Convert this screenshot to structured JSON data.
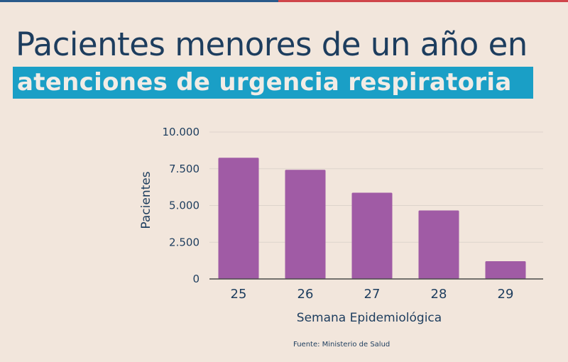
{
  "header": {
    "title_line1": "Pacientes menores de un año en",
    "title_line2": "atenciones de urgencia respiratoria"
  },
  "colors": {
    "background": "#f2e6dc",
    "title": "#1d3d5e",
    "highlight": "#1a9fc6",
    "bar": "#a05ba5",
    "gridline": "#ddd3cb",
    "axis": "#4a4a4a",
    "topbar_left": "#2a5a8a",
    "topbar_right": "#d0464a"
  },
  "chart_data": {
    "type": "bar",
    "title": "Pacientes menores de un año en atenciones de urgencia respiratoria",
    "xlabel": "Semana Epidemiológica",
    "ylabel": "Pacientes",
    "categories": [
      "25",
      "26",
      "27",
      "28",
      "29"
    ],
    "values": [
      8250,
      7430,
      5870,
      4660,
      1210
    ],
    "ylim": [
      0,
      10000
    ],
    "yticks": [
      0,
      2500,
      5000,
      7500,
      10000
    ],
    "ytick_labels": [
      "0",
      "2.500",
      "5.000",
      "7.500",
      "10.000"
    ],
    "grid": true,
    "legend": "none"
  },
  "footer": {
    "source": "Fuente: Ministerio de Salud"
  }
}
